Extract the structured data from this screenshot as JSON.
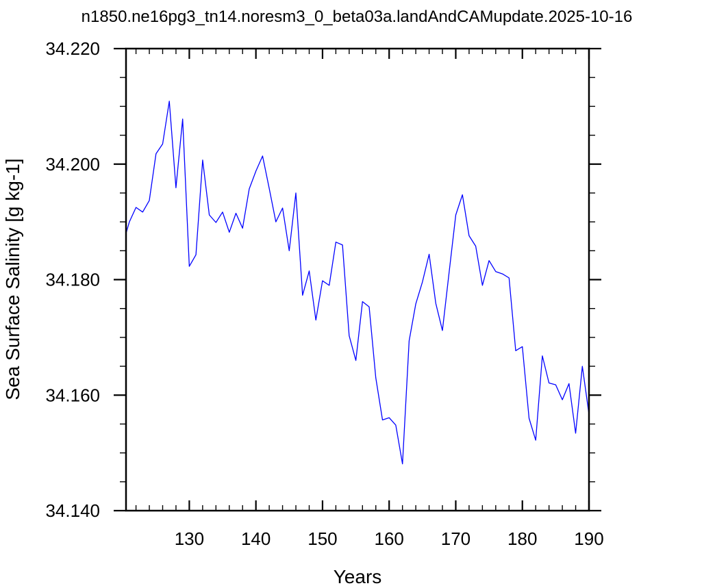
{
  "chart_data": {
    "type": "line",
    "title": "n1850.ne16pg3_tn14.noresm3_0_beta03a.landAndCAMupdate.2025-10-16",
    "xlabel": "Years",
    "ylabel": "Sea Surface Salinity [g kg-1]",
    "xlim": [
      120.5,
      190
    ],
    "ylim": [
      34.14,
      34.22
    ],
    "x_major_ticks": [
      130,
      140,
      150,
      160,
      170,
      180,
      190
    ],
    "x_tick_labels": [
      "130",
      "140",
      "150",
      "160",
      "170",
      "180",
      "190"
    ],
    "y_major_ticks": [
      34.14,
      34.16,
      34.18,
      34.2,
      34.22
    ],
    "y_tick_labels": [
      "34.140",
      "34.160",
      "34.180",
      "34.200",
      "34.220"
    ],
    "grid": false,
    "legend": "none",
    "series": [
      {
        "color": "#0000ff",
        "x": [
          120.5,
          121,
          122,
          123,
          124,
          125,
          126,
          127,
          128,
          129,
          130,
          131,
          132,
          133,
          134,
          135,
          136,
          137,
          138,
          139,
          140,
          141,
          142,
          143,
          144,
          145,
          146,
          147,
          148,
          149,
          150,
          151,
          152,
          153,
          154,
          155,
          156,
          157,
          158,
          159,
          160,
          161,
          162,
          163,
          164,
          165,
          166,
          167,
          168,
          169,
          170,
          171,
          172,
          173,
          174,
          175,
          176,
          177,
          178,
          179,
          180,
          181,
          182,
          183,
          184,
          185,
          186,
          187,
          188,
          189,
          190
        ],
        "values": [
          34.188,
          34.19,
          34.1925,
          34.1917,
          34.1937,
          34.2018,
          34.2035,
          34.2109,
          34.1959,
          34.2078,
          34.1823,
          34.1843,
          34.2007,
          34.1912,
          34.1899,
          34.1917,
          34.1882,
          34.1915,
          34.1889,
          34.1957,
          34.1988,
          34.2014,
          34.1958,
          34.19,
          34.1924,
          34.185,
          34.195,
          34.1773,
          34.1815,
          34.173,
          34.1798,
          34.179,
          34.1865,
          34.186,
          34.1703,
          34.166,
          34.1762,
          34.1753,
          34.163,
          34.1557,
          34.1561,
          34.1548,
          34.1481,
          34.1694,
          34.1758,
          34.1796,
          34.1844,
          34.1759,
          34.1712,
          34.1812,
          34.1912,
          34.1947,
          34.1876,
          34.1858,
          34.179,
          34.1833,
          34.1814,
          34.181,
          34.1803,
          34.1677,
          34.1684,
          34.156,
          34.1522,
          34.1668,
          34.1621,
          34.1618,
          34.1592,
          34.162,
          34.1534,
          34.165,
          34.1567
        ]
      }
    ]
  }
}
